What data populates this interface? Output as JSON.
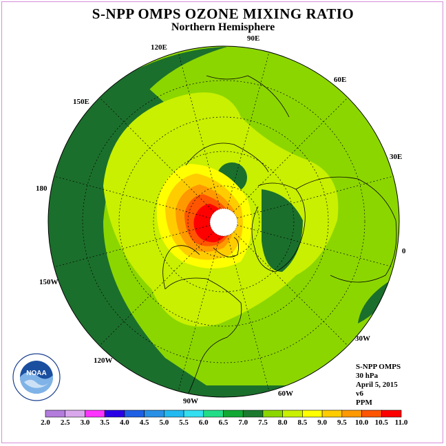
{
  "title": "S-NPP OMPS OZONE MIXING RATIO",
  "subtitle": "Northern Hemisphere",
  "longitude_labels": {
    "e90": "90E",
    "e120": "120E",
    "e60": "60E",
    "e150": "150E",
    "e30": "30E",
    "d180": "180",
    "d0": "0",
    "w150": "150W",
    "w30": "30W",
    "w120": "120W",
    "w60": "60W",
    "w90": "90W"
  },
  "info": {
    "instrument": "S-NPP OMPS",
    "level": "30 hPa",
    "date": "April 5, 2015",
    "version": "v6",
    "units": "PPM"
  },
  "logo": {
    "text": "NOAA",
    "ring_text": "NATIONAL OCEANIC AND ATMOSPHERIC ADMINISTRATION · U.S. DEPARTMENT OF COMMERCE"
  },
  "colorbar": {
    "labels": [
      "2.0",
      "2.5",
      "3.0",
      "3.5",
      "4.0",
      "4.5",
      "5.0",
      "5.5",
      "6.0",
      "6.5",
      "7.0",
      "7.5",
      "8.0",
      "8.5",
      "9.0",
      "9.5",
      "10.0",
      "10.5",
      "11.0"
    ],
    "colors": [
      "#b27bdc",
      "#d9a8ec",
      "#ff33ff",
      "#2a00e6",
      "#1f5fe6",
      "#2a90e6",
      "#22b8f0",
      "#33dff0",
      "#22dd88",
      "#11a833",
      "#1b7a2e",
      "#8cd600",
      "#c8f000",
      "#ffff00",
      "#ffcc00",
      "#ff9900",
      "#ff5500",
      "#ff0000",
      "#8b5a2b"
    ]
  },
  "map_colors": {
    "background": "#8cd600",
    "dark_green": "#1b6f2c",
    "mid_green": "#11a833",
    "light_band": "#c8f000",
    "yellow": "#ffff00",
    "orange": "#ffcc00",
    "dark_orange": "#ff9900",
    "red_orange": "#ff5500",
    "red": "#ff0000"
  }
}
